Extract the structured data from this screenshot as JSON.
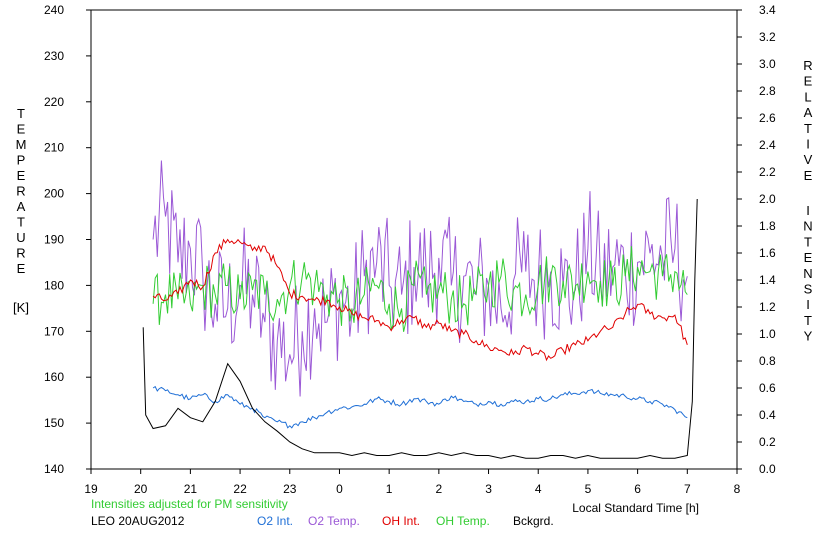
{
  "chart_data": {
    "type": "line",
    "y_left": {
      "label_letters": [
        "T",
        "E",
        "M",
        "P",
        "E",
        "R",
        "A",
        "T",
        "U",
        "R",
        "E"
      ],
      "unit": "[K]",
      "range": [
        140,
        240
      ],
      "ticks": [
        140,
        150,
        160,
        170,
        180,
        190,
        200,
        210,
        220,
        230,
        240
      ]
    },
    "y_right": {
      "label_top": [
        "R",
        "E",
        "L",
        "A",
        "T",
        "I",
        "V",
        "E"
      ],
      "label_bottom": [
        "I",
        "N",
        "T",
        "E",
        "N",
        "S",
        "I",
        "T",
        "Y"
      ],
      "range": [
        0,
        3.4
      ],
      "ticks": [
        "0.0",
        "0.2",
        "0.4",
        "0.6",
        "0.8",
        "1.0",
        "1.2",
        "1.4",
        "1.6",
        "1.8",
        "2.0",
        "2.2",
        "2.4",
        "2.6",
        "2.8",
        "3.0",
        "3.2",
        "3.4"
      ]
    },
    "x": {
      "label": "Local Standard Time [h]",
      "range": [
        19,
        32
      ],
      "tick_values": [
        19,
        20,
        21,
        22,
        23,
        24,
        25,
        26,
        27,
        28,
        29,
        30,
        31,
        32
      ],
      "tick_labels": [
        "19",
        "20",
        "21",
        "22",
        "23",
        "0",
        "1",
        "2",
        "3",
        "4",
        "5",
        "6",
        "7",
        "8"
      ]
    },
    "note": "Intensities adjusted for PM sensitivity",
    "station_date": "LEO 20AUG2012",
    "legend": [
      {
        "label": "O2 Int.",
        "color": "#1f6fd6"
      },
      {
        "label": "O2 Temp.",
        "color": "#9b59d6"
      },
      {
        "label": "OH Int.",
        "color": "#e00000"
      },
      {
        "label": "OH Temp.",
        "color": "#33cc33"
      },
      {
        "label": "Bckgrd.",
        "color": "#000000"
      }
    ],
    "series": [
      {
        "name": "O2 Temp.",
        "axis": "left",
        "color": "#9b59d6",
        "x": [
          20.25,
          20.5,
          20.75,
          21.0,
          21.25,
          21.5,
          21.75,
          22.0,
          22.25,
          22.5,
          22.75,
          23.0,
          23.25,
          23.5,
          23.75,
          24.0,
          24.25,
          24.5,
          24.75,
          25.0,
          25.25,
          25.5,
          25.75,
          26.0,
          26.25,
          26.5,
          26.75,
          27.0,
          27.25,
          27.5,
          27.75,
          28.0,
          28.25,
          28.5,
          28.75,
          29.0,
          29.25,
          29.5,
          29.75,
          30.0,
          30.25,
          30.5,
          30.75,
          31.0
        ],
        "y": [
          190,
          195,
          185,
          188,
          182,
          176,
          175,
          180,
          178,
          172,
          168,
          165,
          170,
          175,
          172,
          178,
          174,
          182,
          185,
          180,
          178,
          184,
          182,
          186,
          180,
          182,
          178,
          180,
          175,
          181,
          183,
          181,
          183,
          180,
          179,
          188,
          182,
          184,
          183,
          185,
          187,
          186,
          188,
          182
        ]
      },
      {
        "name": "OH Temp.",
        "axis": "left",
        "color": "#33cc33",
        "x": [
          20.25,
          20.5,
          20.75,
          21.0,
          21.25,
          21.5,
          21.75,
          22.0,
          22.25,
          22.5,
          22.75,
          23.0,
          23.25,
          23.5,
          23.75,
          24.0,
          24.25,
          24.5,
          24.75,
          25.0,
          25.25,
          25.5,
          25.75,
          26.0,
          26.25,
          26.5,
          26.75,
          27.0,
          27.25,
          27.5,
          27.75,
          28.0,
          28.25,
          28.5,
          28.75,
          29.0,
          29.25,
          29.5,
          29.75,
          30.0,
          30.25,
          30.5,
          30.75,
          31.0
        ],
        "y": [
          176,
          178,
          177,
          176,
          180,
          178,
          180,
          177,
          179,
          178,
          177,
          180,
          182,
          180,
          178,
          177,
          175,
          178,
          180,
          176,
          175,
          180,
          178,
          179,
          177,
          176,
          178,
          180,
          182,
          179,
          178,
          180,
          182,
          181,
          180,
          183,
          181,
          180,
          182,
          184,
          183,
          182,
          183,
          178
        ]
      },
      {
        "name": "OH Int.",
        "axis": "right",
        "color": "#e00000",
        "x": [
          20.25,
          20.5,
          20.75,
          21.0,
          21.25,
          21.5,
          21.75,
          22.0,
          22.25,
          22.5,
          22.75,
          23.0,
          23.25,
          23.5,
          23.75,
          24.0,
          24.25,
          24.5,
          24.75,
          25.0,
          25.25,
          25.5,
          25.75,
          26.0,
          26.25,
          26.5,
          26.75,
          27.0,
          27.25,
          27.5,
          27.75,
          28.0,
          28.25,
          28.5,
          28.75,
          29.0,
          29.25,
          29.5,
          29.75,
          30.0,
          30.25,
          30.5,
          30.75,
          31.0
        ],
        "y": [
          1.28,
          1.25,
          1.3,
          1.4,
          1.35,
          1.6,
          1.7,
          1.68,
          1.62,
          1.65,
          1.5,
          1.3,
          1.28,
          1.25,
          1.25,
          1.2,
          1.15,
          1.12,
          1.1,
          1.05,
          1.1,
          1.12,
          1.05,
          1.08,
          1.02,
          1.0,
          0.95,
          0.9,
          0.88,
          0.85,
          0.9,
          0.85,
          0.82,
          0.88,
          0.92,
          0.95,
          1.02,
          1.05,
          1.15,
          1.22,
          1.15,
          1.12,
          1.14,
          0.92
        ]
      },
      {
        "name": "O2 Int.",
        "axis": "right",
        "color": "#1f6fd6",
        "x": [
          20.25,
          20.5,
          20.75,
          21.0,
          21.25,
          21.5,
          21.75,
          22.0,
          22.25,
          22.5,
          22.75,
          23.0,
          23.25,
          23.5,
          23.75,
          24.0,
          24.25,
          24.5,
          24.75,
          25.0,
          25.25,
          25.5,
          25.75,
          26.0,
          26.25,
          26.5,
          26.75,
          27.0,
          27.25,
          27.5,
          27.75,
          28.0,
          28.25,
          28.5,
          28.75,
          29.0,
          29.25,
          29.5,
          29.75,
          30.0,
          30.25,
          30.5,
          30.75,
          31.0
        ],
        "y": [
          0.6,
          0.58,
          0.55,
          0.52,
          0.55,
          0.5,
          0.55,
          0.48,
          0.45,
          0.38,
          0.35,
          0.32,
          0.35,
          0.38,
          0.42,
          0.45,
          0.46,
          0.48,
          0.52,
          0.5,
          0.48,
          0.52,
          0.5,
          0.48,
          0.54,
          0.5,
          0.48,
          0.5,
          0.48,
          0.5,
          0.5,
          0.52,
          0.52,
          0.55,
          0.56,
          0.58,
          0.56,
          0.55,
          0.54,
          0.52,
          0.5,
          0.48,
          0.44,
          0.38
        ]
      },
      {
        "name": "Bckgrd.",
        "axis": "right",
        "color": "#000000",
        "x": [
          20.05,
          20.1,
          20.25,
          20.5,
          20.75,
          21.0,
          21.25,
          21.5,
          21.75,
          22.0,
          22.25,
          22.5,
          22.75,
          23.0,
          23.25,
          23.5,
          23.75,
          24.0,
          24.25,
          24.5,
          24.75,
          25.0,
          25.25,
          25.5,
          25.75,
          26.0,
          26.25,
          26.5,
          26.75,
          27.0,
          27.25,
          27.5,
          27.75,
          28.0,
          28.25,
          28.5,
          28.75,
          29.0,
          29.25,
          29.5,
          29.75,
          30.0,
          30.25,
          30.5,
          30.75,
          31.0,
          31.1,
          31.15,
          31.2
        ],
        "y": [
          1.05,
          0.4,
          0.3,
          0.32,
          0.45,
          0.38,
          0.35,
          0.5,
          0.78,
          0.65,
          0.45,
          0.35,
          0.28,
          0.2,
          0.15,
          0.12,
          0.12,
          0.12,
          0.1,
          0.12,
          0.1,
          0.1,
          0.12,
          0.1,
          0.1,
          0.12,
          0.1,
          0.12,
          0.1,
          0.1,
          0.08,
          0.1,
          0.08,
          0.08,
          0.1,
          0.1,
          0.08,
          0.1,
          0.08,
          0.08,
          0.08,
          0.08,
          0.1,
          0.08,
          0.08,
          0.1,
          0.5,
          1.4,
          2.0
        ]
      }
    ]
  }
}
